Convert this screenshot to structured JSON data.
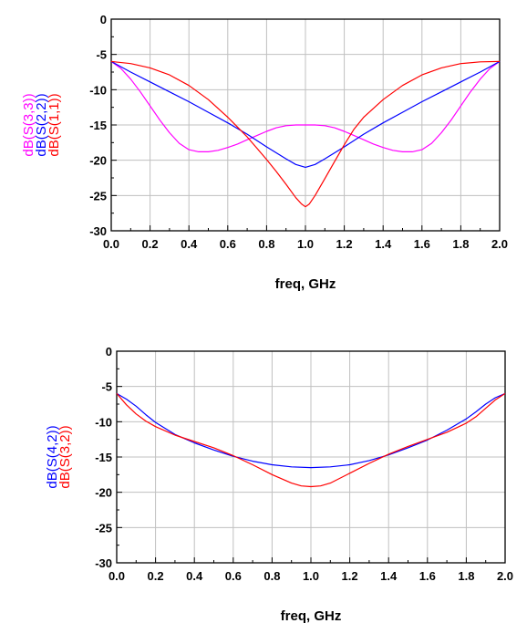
{
  "chart_data": [
    {
      "type": "line",
      "xlabel": "freq, GHz",
      "ylabel_series": [
        "dB(S(3,3))",
        "dB(S(2,2))",
        "dB(S(1,1))"
      ],
      "xlim": [
        0.0,
        2.0
      ],
      "ylim": [
        -30,
        0
      ],
      "xticks": [
        "0.0",
        "0.2",
        "0.4",
        "0.6",
        "0.8",
        "1.0",
        "1.2",
        "1.4",
        "1.6",
        "1.8",
        "2.0"
      ],
      "yticks": [
        "0",
        "-5",
        "-10",
        "-15",
        "-20",
        "-25",
        "-30"
      ],
      "grid": true,
      "series": [
        {
          "name": "dB(S(3,3))",
          "color": "#ff00ff",
          "x": [
            0,
            0.05,
            0.1,
            0.15,
            0.2,
            0.25,
            0.3,
            0.35,
            0.4,
            0.45,
            0.5,
            0.55,
            0.6,
            0.65,
            0.7,
            0.75,
            0.8,
            0.85,
            0.9,
            0.95,
            1.0,
            1.05,
            1.1,
            1.15,
            1.2,
            1.25,
            1.3,
            1.35,
            1.4,
            1.45,
            1.5,
            1.55,
            1.6,
            1.65,
            1.7,
            1.75,
            1.8,
            1.85,
            1.9,
            1.95,
            2.0
          ],
          "y": [
            -6,
            -7,
            -8.5,
            -10.3,
            -12.3,
            -14.3,
            -16.1,
            -17.6,
            -18.5,
            -18.8,
            -18.8,
            -18.6,
            -18.2,
            -17.7,
            -17.1,
            -16.5,
            -15.9,
            -15.4,
            -15.1,
            -15.0,
            -15.0,
            -15.0,
            -15.1,
            -15.4,
            -15.9,
            -16.5,
            -17.1,
            -17.7,
            -18.2,
            -18.6,
            -18.8,
            -18.8,
            -18.5,
            -17.6,
            -16.1,
            -14.3,
            -12.3,
            -10.3,
            -8.5,
            -7,
            -6
          ]
        },
        {
          "name": "dB(S(2,2))",
          "color": "#0000ff",
          "x": [
            0,
            0.1,
            0.2,
            0.3,
            0.4,
            0.5,
            0.6,
            0.7,
            0.8,
            0.9,
            0.95,
            1.0,
            1.05,
            1.1,
            1.2,
            1.3,
            1.4,
            1.5,
            1.6,
            1.7,
            1.8,
            1.9,
            2.0
          ],
          "y": [
            -6,
            -7.5,
            -8.9,
            -10.3,
            -11.7,
            -13.2,
            -14.7,
            -16.3,
            -18.1,
            -19.8,
            -20.6,
            -21.0,
            -20.6,
            -19.8,
            -18.1,
            -16.3,
            -14.7,
            -13.2,
            -11.7,
            -10.3,
            -8.9,
            -7.5,
            -6
          ]
        },
        {
          "name": "dB(S(1,1))",
          "color": "#ff0000",
          "x": [
            0,
            0.1,
            0.2,
            0.3,
            0.4,
            0.5,
            0.6,
            0.7,
            0.75,
            0.8,
            0.85,
            0.9,
            0.95,
            0.98,
            1.0,
            1.02,
            1.05,
            1.1,
            1.15,
            1.2,
            1.25,
            1.3,
            1.4,
            1.5,
            1.6,
            1.7,
            1.8,
            1.9,
            2.0
          ],
          "y": [
            -6,
            -6.3,
            -6.9,
            -7.9,
            -9.4,
            -11.4,
            -13.9,
            -16.7,
            -18.3,
            -19.9,
            -21.6,
            -23.4,
            -25.3,
            -26.2,
            -26.6,
            -26.2,
            -25.0,
            -22.6,
            -20.2,
            -17.8,
            -15.6,
            -13.9,
            -11.4,
            -9.4,
            -7.9,
            -6.9,
            -6.3,
            -6.05,
            -6
          ]
        }
      ]
    },
    {
      "type": "line",
      "xlabel": "freq, GHz",
      "ylabel_series": [
        "dB(S(4,2))",
        "dB(S(3,2))"
      ],
      "xlim": [
        0.0,
        2.0
      ],
      "ylim": [
        -30,
        0
      ],
      "xticks": [
        "0.0",
        "0.2",
        "0.4",
        "0.6",
        "0.8",
        "1.0",
        "1.2",
        "1.4",
        "1.6",
        "1.8",
        "2.0"
      ],
      "yticks": [
        "0",
        "-5",
        "-10",
        "-15",
        "-20",
        "-25",
        "-30"
      ],
      "grid": true,
      "series": [
        {
          "name": "dB(S(4,2))",
          "color": "#0000ff",
          "x": [
            0,
            0.05,
            0.1,
            0.15,
            0.2,
            0.3,
            0.4,
            0.5,
            0.6,
            0.7,
            0.8,
            0.9,
            1.0,
            1.1,
            1.2,
            1.3,
            1.4,
            1.5,
            1.6,
            1.7,
            1.8,
            1.85,
            1.9,
            1.95,
            2.0
          ],
          "y": [
            -6,
            -6.8,
            -7.8,
            -9.0,
            -10.1,
            -11.8,
            -13.0,
            -14.0,
            -14.9,
            -15.6,
            -16.1,
            -16.4,
            -16.5,
            -16.4,
            -16.1,
            -15.5,
            -14.7,
            -13.7,
            -12.6,
            -11.2,
            -9.6,
            -8.6,
            -7.5,
            -6.6,
            -6
          ]
        },
        {
          "name": "dB(S(3,2))",
          "color": "#ff0000",
          "x": [
            0,
            0.05,
            0.1,
            0.15,
            0.2,
            0.3,
            0.4,
            0.5,
            0.6,
            0.7,
            0.8,
            0.9,
            0.95,
            1.0,
            1.05,
            1.1,
            1.2,
            1.3,
            1.4,
            1.5,
            1.6,
            1.7,
            1.8,
            1.85,
            1.9,
            1.95,
            2.0
          ],
          "y": [
            -6,
            -7.6,
            -8.9,
            -9.9,
            -10.7,
            -11.9,
            -12.8,
            -13.7,
            -14.8,
            -16.1,
            -17.5,
            -18.7,
            -19.1,
            -19.2,
            -19.1,
            -18.7,
            -17.3,
            -15.9,
            -14.6,
            -13.5,
            -12.5,
            -11.5,
            -10.2,
            -9.3,
            -8.1,
            -6.9,
            -6
          ]
        }
      ]
    }
  ]
}
